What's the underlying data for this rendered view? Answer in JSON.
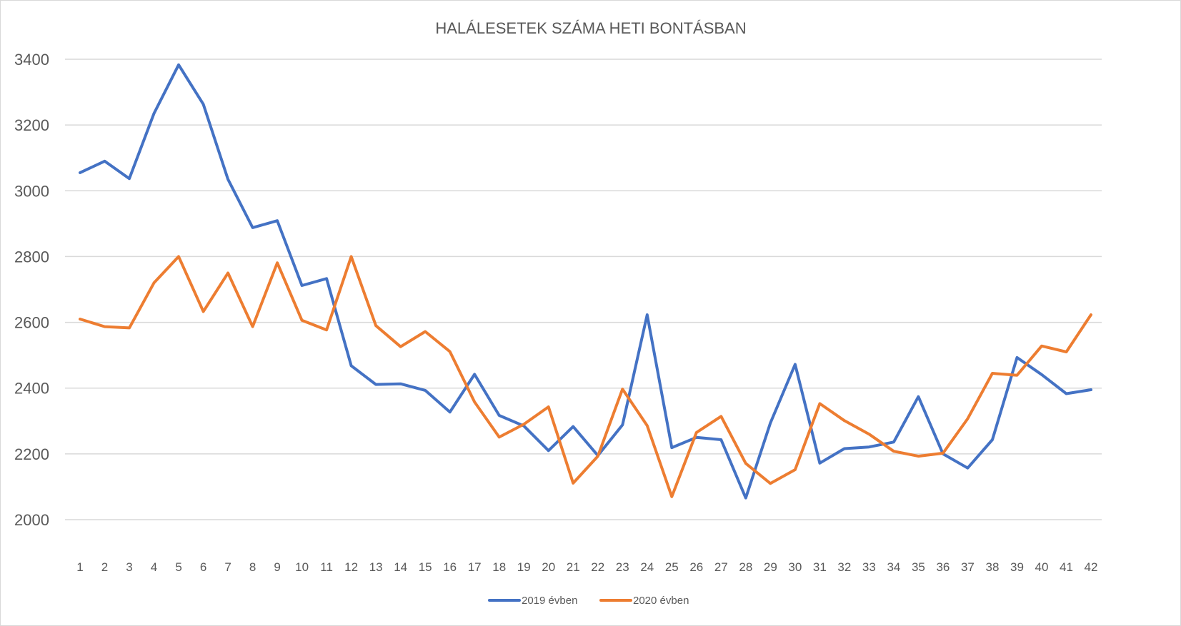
{
  "chart_data": {
    "type": "line",
    "title": "HALÁLESETEK SZÁMA HETI BONTÁSBAN",
    "xlabel": "",
    "ylabel": "",
    "ylim": [
      2000,
      3400
    ],
    "yticks": [
      2000,
      2200,
      2400,
      2600,
      2800,
      3000,
      3200,
      3400
    ],
    "grid": true,
    "legend_position": "bottom",
    "categories": [
      "1",
      "2",
      "3",
      "4",
      "5",
      "6",
      "7",
      "8",
      "9",
      "10",
      "11",
      "12",
      "13",
      "14",
      "15",
      "16",
      "17",
      "18",
      "19",
      "20",
      "21",
      "22",
      "23",
      "24",
      "25",
      "26",
      "27",
      "28",
      "29",
      "30",
      "31",
      "32",
      "33",
      "34",
      "35",
      "36",
      "37",
      "38",
      "39",
      "40",
      "41",
      "42"
    ],
    "series": [
      {
        "name": "2019 évben",
        "color": "#4472c4",
        "values": [
          3055,
          3090,
          3037,
          3235,
          3383,
          3263,
          3035,
          2888,
          2909,
          2712,
          2733,
          2468,
          2411,
          2413,
          2393,
          2327,
          2442,
          2317,
          2285,
          2210,
          2283,
          2195,
          2288,
          2623,
          2219,
          2250,
          2243,
          2066,
          2294,
          2472,
          2172,
          2216,
          2221,
          2236,
          2374,
          2200,
          2157,
          2243,
          2493,
          2441,
          2383,
          2395
        ]
      },
      {
        "name": "2020 évben",
        "color": "#ed7d31",
        "values": [
          2610,
          2587,
          2583,
          2720,
          2800,
          2633,
          2750,
          2587,
          2781,
          2606,
          2577,
          2800,
          2590,
          2526,
          2572,
          2511,
          2358,
          2251,
          2290,
          2343,
          2111,
          2193,
          2397,
          2286,
          2070,
          2265,
          2314,
          2171,
          2110,
          2152,
          2353,
          2301,
          2260,
          2208,
          2193,
          2202,
          2307,
          2445,
          2439,
          2528,
          2510,
          2623
        ]
      }
    ]
  }
}
